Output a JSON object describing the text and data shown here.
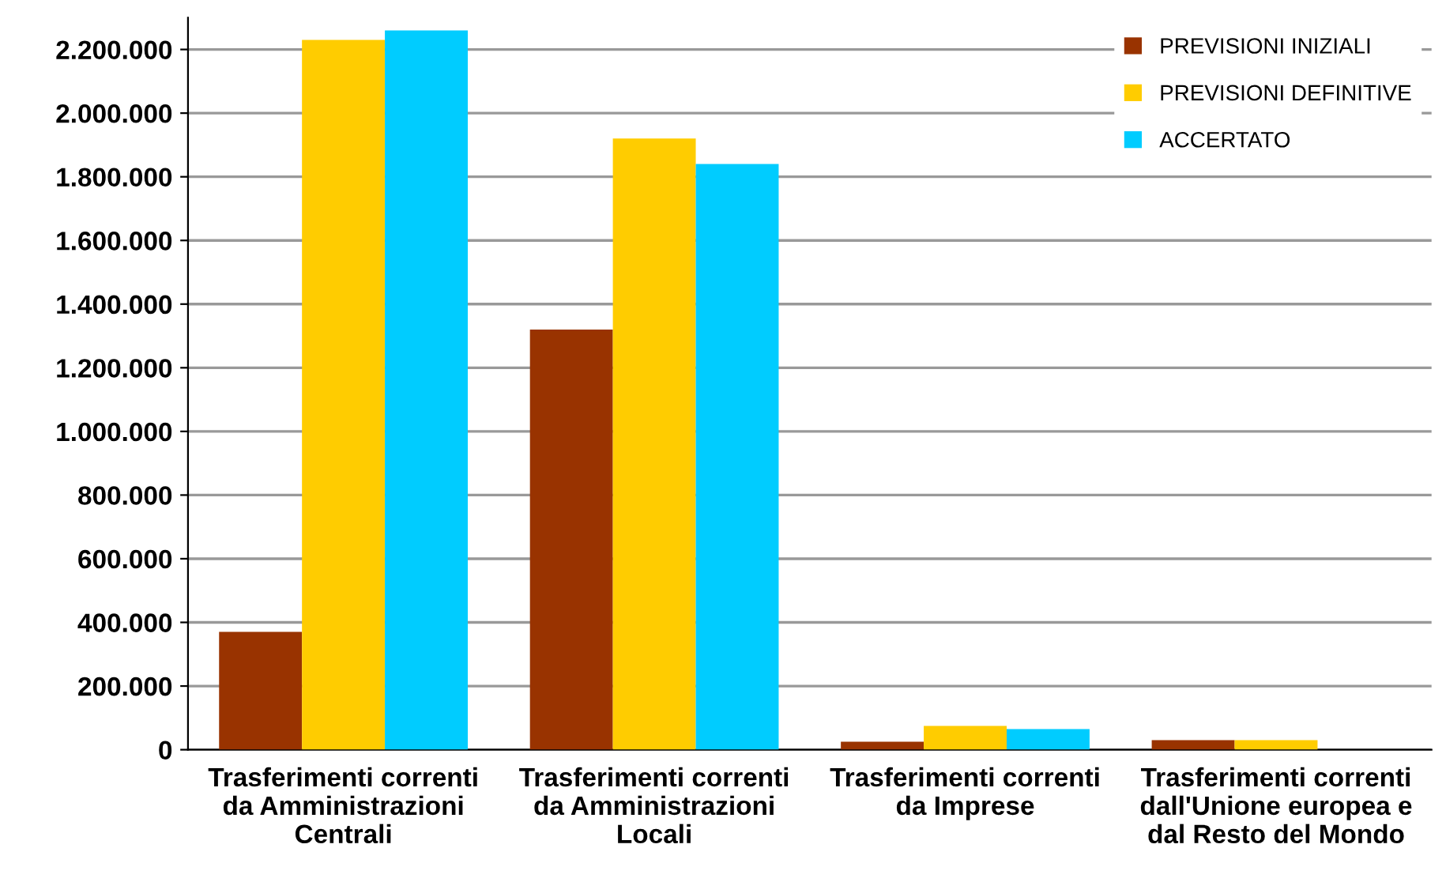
{
  "chart_data": {
    "type": "bar",
    "categories": [
      "Trasferimenti correnti\nda Amministrazioni\nCentrali",
      "Trasferimenti correnti\nda Amministrazioni\nLocali",
      "Trasferimenti correnti\nda Imprese",
      "Trasferimenti correnti\ndall'Unione europea e\ndal Resto del Mondo"
    ],
    "series": [
      {
        "name": "PREVISIONI INIZIALI",
        "color": "#993300",
        "values": [
          370000,
          1320000,
          25000,
          30000
        ]
      },
      {
        "name": "PREVISIONI DEFINITIVE",
        "color": "#ffcc00",
        "values": [
          2230000,
          1920000,
          75000,
          30000
        ]
      },
      {
        "name": "ACCERTATO",
        "color": "#00ccff",
        "values": [
          2260000,
          1840000,
          65000,
          0
        ]
      }
    ],
    "ylim": [
      0,
      2300000
    ],
    "yticks": [
      {
        "value": 0,
        "label": "0"
      },
      {
        "value": 200000,
        "label": "200.000"
      },
      {
        "value": 400000,
        "label": "400.000"
      },
      {
        "value": 600000,
        "label": "600.000"
      },
      {
        "value": 800000,
        "label": "800.000"
      },
      {
        "value": 1000000,
        "label": "1.000.000"
      },
      {
        "value": 1200000,
        "label": "1.200.000"
      },
      {
        "value": 1400000,
        "label": "1.400.000"
      },
      {
        "value": 1600000,
        "label": "1.600.000"
      },
      {
        "value": 1800000,
        "label": "1.800.000"
      },
      {
        "value": 2000000,
        "label": "2.000.000"
      },
      {
        "value": 2200000,
        "label": "2.200.000"
      }
    ],
    "grid": "y",
    "legend": "top right"
  }
}
